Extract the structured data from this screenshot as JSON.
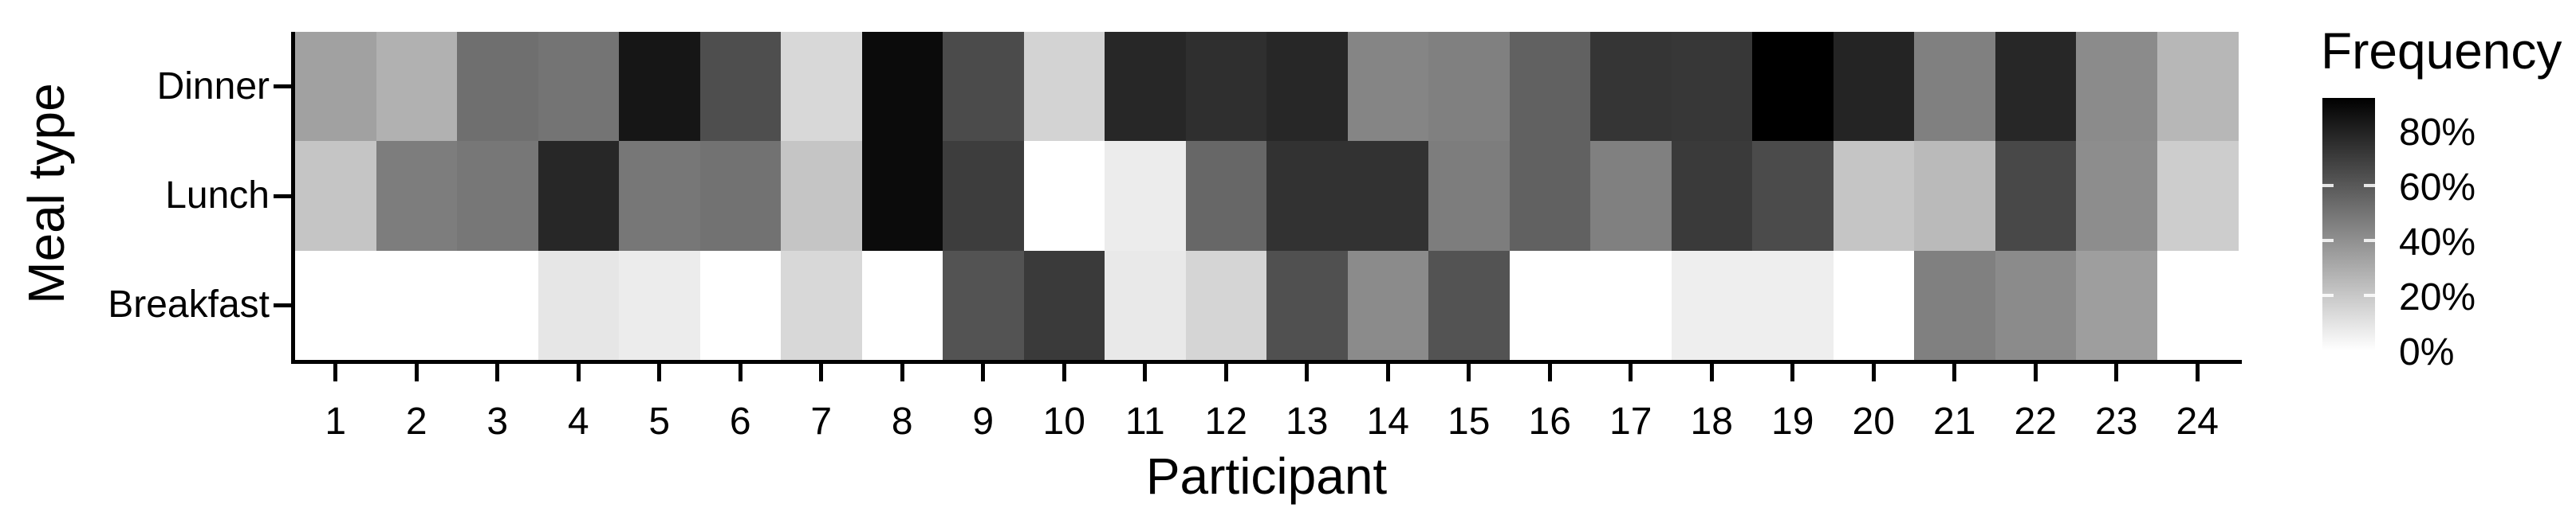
{
  "chart_data": {
    "type": "heatmap",
    "title": "",
    "x_axis": {
      "title": "Participant",
      "labels": [
        "1",
        "2",
        "3",
        "4",
        "5",
        "6",
        "7",
        "8",
        "9",
        "10",
        "11",
        "12",
        "13",
        "14",
        "15",
        "16",
        "17",
        "18",
        "19",
        "20",
        "21",
        "22",
        "23",
        "24"
      ]
    },
    "y_axis": {
      "title": "Meal type",
      "labels": [
        "Dinner",
        "Lunch",
        "Breakfast"
      ]
    },
    "legend": {
      "title": "Frequency",
      "tick_labels": [
        "80%",
        "60%",
        "40%",
        "20%",
        "0%"
      ],
      "tick_values": [
        80,
        60,
        40,
        20,
        0
      ],
      "bar_tick_values": [
        60,
        40,
        20
      ],
      "scale_max": 92,
      "low_color": "#ffffff",
      "high_color": "#000000"
    },
    "unit": "%",
    "grid": false,
    "legend_position": "right",
    "series": [
      {
        "name": "Dinner",
        "values": [
          34,
          28,
          52,
          50,
          84,
          64,
          14,
          88,
          65,
          16,
          78,
          75,
          78,
          44,
          46,
          57,
          73,
          72,
          92,
          79,
          46,
          78,
          42,
          26
        ]
      },
      {
        "name": "Lunch",
        "values": [
          21,
          47,
          49,
          78,
          49,
          51,
          21,
          88,
          70,
          0,
          7,
          55,
          74,
          74,
          47,
          57,
          46,
          71,
          65,
          21,
          25,
          66,
          41,
          18
        ]
      },
      {
        "name": "Breakfast",
        "values": [
          0,
          0,
          0,
          9,
          7,
          0,
          14,
          0,
          62,
          71,
          8,
          15,
          63,
          42,
          62,
          0,
          0,
          6,
          6,
          0,
          46,
          42,
          35,
          0
        ]
      }
    ]
  }
}
